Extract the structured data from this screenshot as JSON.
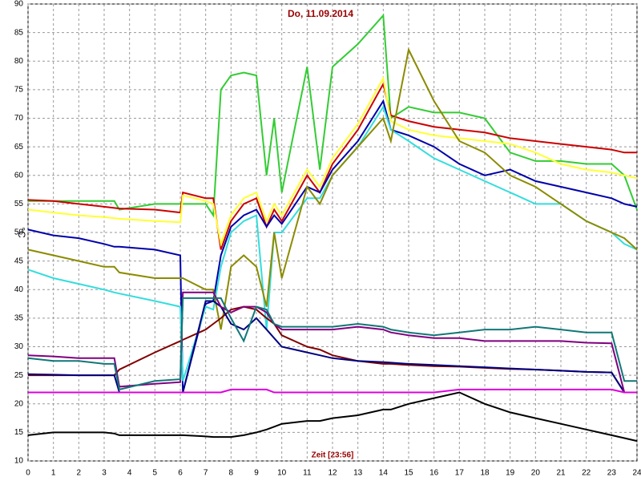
{
  "chart_data": {
    "type": "line",
    "title": "Do, 11.09.2014",
    "xlabel": "Zeit [23:56]",
    "ylabel": "°C",
    "x": [
      0,
      1,
      2,
      3,
      3.4,
      3.6,
      5,
      6,
      6.1,
      7,
      7.3,
      7.6,
      8,
      8.5,
      9,
      9.4,
      9.7,
      10,
      11,
      11.5,
      12,
      13,
      14,
      14.3,
      15,
      16,
      17,
      18,
      19,
      20,
      21,
      22,
      23,
      23.5,
      24
    ],
    "xlim": [
      0,
      24
    ],
    "xticks": [
      0,
      1,
      2,
      3,
      4,
      5,
      6,
      7,
      8,
      9,
      10,
      11,
      12,
      13,
      14,
      15,
      16,
      17,
      18,
      19,
      20,
      21,
      22,
      23,
      24
    ],
    "ylim": [
      10,
      90
    ],
    "yticks": [
      10,
      15,
      20,
      25,
      30,
      35,
      40,
      45,
      50,
      55,
      60,
      65,
      70,
      75,
      80,
      85,
      90
    ],
    "grid": true,
    "series": [
      {
        "color": "#33cc33",
        "values": [
          55.5,
          55.5,
          55.5,
          55.5,
          55.5,
          54,
          55,
          55,
          55,
          55,
          53,
          75,
          77.5,
          78,
          77.5,
          60,
          70,
          57,
          79,
          61,
          79,
          83,
          88,
          70,
          72,
          71,
          71,
          70,
          64,
          62.5,
          62.5,
          62,
          62,
          60,
          54
        ]
      },
      {
        "color": "#cc0000",
        "values": [
          55.7,
          55.5,
          55,
          54.5,
          54.3,
          54.2,
          54,
          53.5,
          57,
          56,
          56,
          47,
          52,
          55,
          56,
          51,
          54,
          52,
          60,
          57,
          62,
          68,
          76,
          70.5,
          69.5,
          68.5,
          68,
          67.5,
          66.5,
          66,
          65.5,
          65,
          64.5,
          64,
          64
        ]
      },
      {
        "color": "#ffff33",
        "values": [
          54,
          53.5,
          53,
          52.7,
          52.5,
          52.4,
          52,
          51.8,
          56.5,
          55.5,
          55,
          48,
          53,
          56,
          57,
          52,
          55,
          53,
          61,
          58,
          63,
          69,
          77,
          69.5,
          68,
          67,
          66.5,
          66,
          65.5,
          64,
          62,
          61,
          60.5,
          60,
          59.5
        ]
      },
      {
        "color": "#0000aa",
        "values": [
          50.5,
          49.5,
          49,
          48,
          47.5,
          47.5,
          47,
          46,
          22,
          37.5,
          38,
          46,
          51,
          53,
          54,
          51,
          53,
          51.5,
          58,
          57,
          61,
          66,
          73,
          68,
          67,
          65,
          62,
          60,
          61,
          59,
          58,
          57,
          56,
          55,
          54.5
        ]
      },
      {
        "color": "#33dddd",
        "values": [
          43.5,
          42,
          41,
          40,
          39.5,
          39.3,
          38,
          37,
          24,
          37,
          36.5,
          44,
          50,
          52,
          53,
          33,
          50,
          50,
          56,
          56,
          60,
          65,
          72,
          68,
          66,
          63,
          61,
          59,
          57,
          55,
          55,
          52,
          50,
          48,
          47
        ]
      },
      {
        "color": "#8b8b00",
        "values": [
          47,
          46,
          45,
          44,
          44,
          43,
          42,
          42,
          42,
          40,
          40,
          33,
          44,
          46,
          44,
          37,
          50,
          42,
          58,
          55,
          60,
          65,
          70,
          66,
          82,
          73,
          66,
          64,
          60,
          58,
          55,
          52,
          50,
          49,
          47
        ]
      },
      {
        "color": "#800000",
        "values": [
          25,
          25,
          25,
          25,
          25,
          26,
          29,
          31,
          31.2,
          33,
          34,
          35,
          36.5,
          37,
          36.5,
          35,
          34,
          32,
          30,
          29.5,
          28.5,
          27.5,
          27,
          27,
          26.8,
          26.6,
          26.5,
          26.3,
          26.1,
          26,
          25.8,
          25.6,
          25.5,
          22,
          22
        ]
      },
      {
        "color": "#000080",
        "values": [
          25.2,
          25.1,
          25,
          25,
          25,
          22,
          22,
          22,
          22,
          38,
          38,
          37,
          34,
          33,
          35,
          33,
          31.5,
          30,
          29,
          28.5,
          28,
          27.5,
          27.3,
          27.2,
          27,
          26.8,
          26.6,
          26.4,
          26.2,
          26,
          25.8,
          25.6,
          25.5,
          22,
          22
        ]
      },
      {
        "color": "#800080",
        "values": [
          28.5,
          28.3,
          28,
          28,
          28,
          23,
          23.5,
          23.8,
          39.5,
          39.5,
          39.5,
          37,
          36,
          37,
          37,
          36,
          34,
          33,
          33,
          33,
          33,
          33.5,
          33,
          32.5,
          32,
          31.5,
          31.5,
          31,
          31,
          31,
          31,
          30.7,
          30.6,
          22,
          22
        ]
      },
      {
        "color": "#117777",
        "values": [
          28,
          27.5,
          27.5,
          27,
          27,
          22.5,
          24,
          24.3,
          38.5,
          38.5,
          38.5,
          38.5,
          35,
          31,
          37,
          36.5,
          34,
          33.5,
          33.5,
          33.5,
          33.5,
          34,
          33.5,
          33,
          32.5,
          32,
          32.5,
          33,
          33,
          33.5,
          33,
          32.5,
          32.5,
          24,
          24
        ]
      },
      {
        "color": "#dd00dd",
        "values": [
          22,
          22,
          22,
          22,
          22,
          22,
          22,
          22,
          22,
          22,
          22,
          22,
          22.5,
          22.5,
          22.5,
          22.5,
          22,
          22,
          22,
          22,
          22,
          22,
          22,
          22,
          22,
          22,
          22.5,
          22.5,
          22.5,
          22.5,
          22.5,
          22.5,
          22.5,
          22,
          22
        ]
      },
      {
        "color": "#000000",
        "values": [
          14.5,
          15,
          15,
          15,
          14.8,
          14.5,
          14.5,
          14.5,
          14.5,
          14.3,
          14.2,
          14.2,
          14.2,
          14.5,
          15,
          15.5,
          16,
          16.5,
          17,
          17,
          17.5,
          18,
          19,
          19,
          20,
          21,
          22,
          20,
          18.5,
          17.5,
          16.5,
          15.5,
          14.5,
          14,
          13.5
        ]
      }
    ]
  }
}
